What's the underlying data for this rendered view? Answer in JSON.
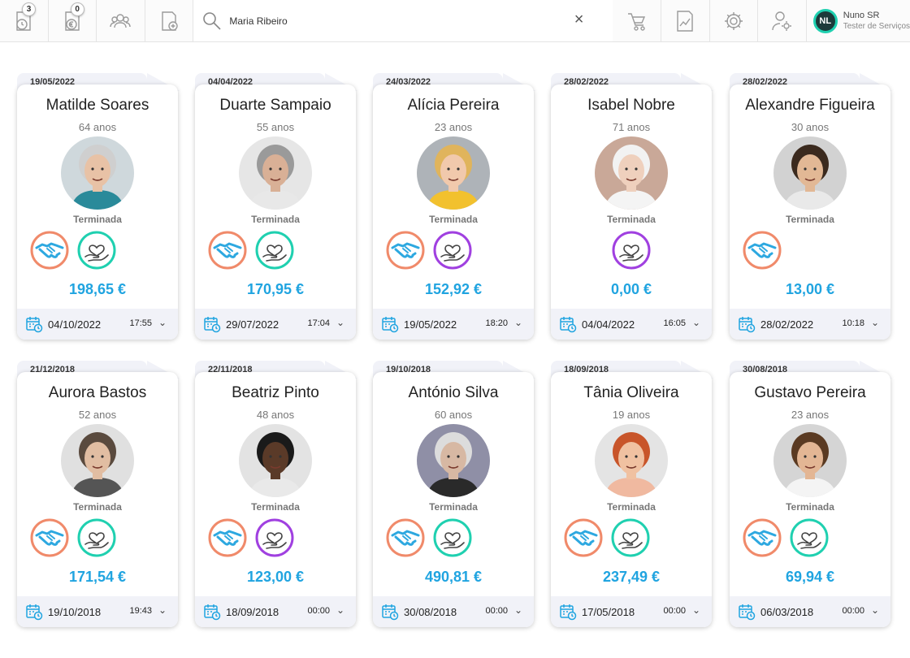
{
  "topbar": {
    "badge_1": "3",
    "badge_2": "0",
    "search_value": "Maria Ribeiro",
    "clear_icon": "×",
    "user_initials": "NL",
    "user_name": "Nuno SR",
    "user_role": "Tester de Serviços"
  },
  "colors": {
    "accent_blue": "#20a4e0",
    "handshake_ring": "#f08a6a",
    "care_ring_teal": "#1fd0b0",
    "care_ring_purple": "#a040e0"
  },
  "cards": [
    {
      "tab_date": "19/05/2022",
      "name": "Matilde Soares",
      "age": "64 anos",
      "status": "Terminada",
      "icons": [
        "handshake-icon",
        "care-teal-icon"
      ],
      "amount": "198,65 €",
      "date": "04/10/2022",
      "time": "17:55"
    },
    {
      "tab_date": "04/04/2022",
      "name": "Duarte Sampaio",
      "age": "55 anos",
      "status": "Terminada",
      "icons": [
        "handshake-icon",
        "care-teal-icon"
      ],
      "amount": "170,95 €",
      "date": "29/07/2022",
      "time": "17:04"
    },
    {
      "tab_date": "24/03/2022",
      "name": "Alícia Pereira",
      "age": "23 anos",
      "status": "Terminada",
      "icons": [
        "handshake-icon",
        "care-purple-icon"
      ],
      "amount": "152,92 €",
      "date": "19/05/2022",
      "time": "18:20"
    },
    {
      "tab_date": "28/02/2022",
      "name": "Isabel Nobre",
      "age": "71 anos",
      "status": "Terminada",
      "icons": [
        "care-purple-icon"
      ],
      "amount": "0,00 €",
      "date": "04/04/2022",
      "time": "16:05"
    },
    {
      "tab_date": "28/02/2022",
      "name": "Alexandre Figueira",
      "age": "30 anos",
      "status": "Terminada",
      "icons": [
        "handshake-icon"
      ],
      "amount": "13,00 €",
      "date": "28/02/2022",
      "time": "10:18"
    },
    {
      "tab_date": "21/12/2018",
      "name": "Aurora Bastos",
      "age": "52 anos",
      "status": "Terminada",
      "icons": [
        "handshake-icon",
        "care-teal-icon"
      ],
      "amount": "171,54 €",
      "date": "19/10/2018",
      "time": "19:43"
    },
    {
      "tab_date": "22/11/2018",
      "name": "Beatriz Pinto",
      "age": "48 anos",
      "status": "Terminada",
      "icons": [
        "handshake-icon",
        "care-purple-icon"
      ],
      "amount": "123,00 €",
      "date": "18/09/2018",
      "time": "00:00"
    },
    {
      "tab_date": "19/10/2018",
      "name": "António Silva",
      "age": "60 anos",
      "status": "Terminada",
      "icons": [
        "handshake-icon",
        "care-teal-icon"
      ],
      "amount": "490,81 €",
      "date": "30/08/2018",
      "time": "00:00"
    },
    {
      "tab_date": "18/09/2018",
      "name": "Tânia Oliveira",
      "age": "19 anos",
      "status": "Terminada",
      "icons": [
        "handshake-icon",
        "care-teal-icon"
      ],
      "amount": "237,49 €",
      "date": "17/05/2018",
      "time": "00:00"
    },
    {
      "tab_date": "30/08/2018",
      "name": "Gustavo Pereira",
      "age": "23 anos",
      "status": "Terminada",
      "icons": [
        "handshake-icon",
        "care-teal-icon"
      ],
      "amount": "69,94 €",
      "date": "06/03/2018",
      "time": "00:00"
    }
  ]
}
